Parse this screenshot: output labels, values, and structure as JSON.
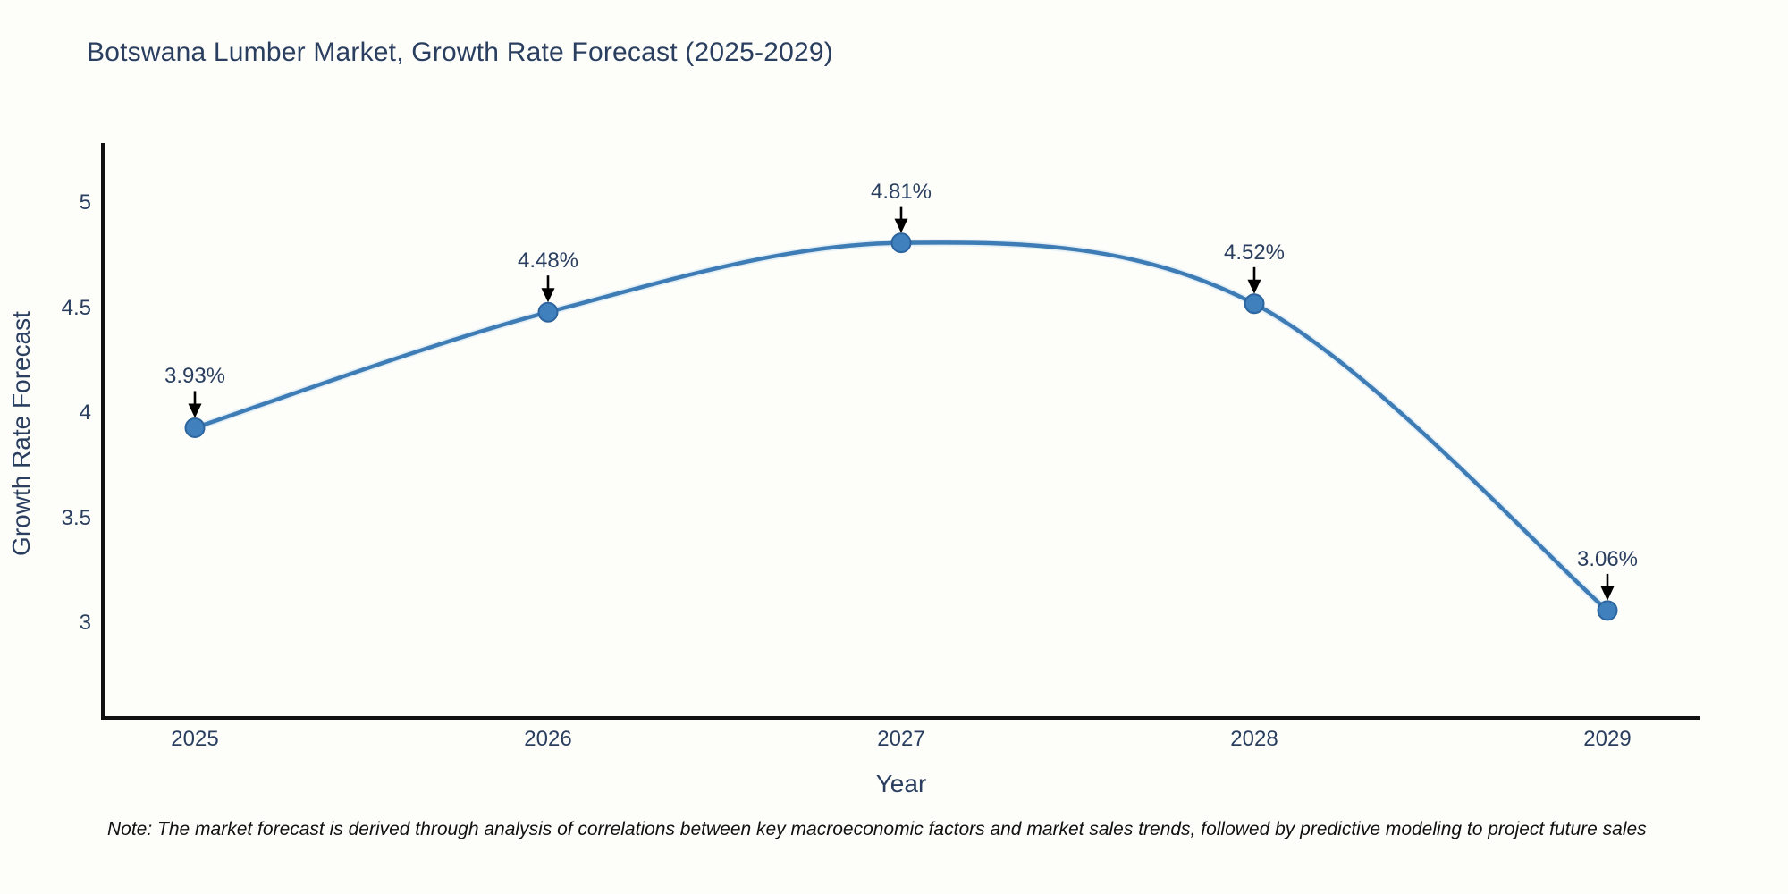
{
  "chart_data": {
    "type": "line",
    "title": "Botswana Lumber Market, Growth Rate Forecast (2025-2029)",
    "xlabel": "Year",
    "ylabel": "Growth Rate Forecast",
    "x": [
      2025,
      2026,
      2027,
      2028,
      2029
    ],
    "categories": [
      "2025",
      "2026",
      "2027",
      "2028",
      "2029"
    ],
    "values": [
      3.93,
      4.48,
      4.81,
      4.52,
      3.06
    ],
    "point_labels": [
      "3.93%",
      "4.48%",
      "4.81%",
      "4.52%",
      "3.06%"
    ],
    "ylim": [
      2.55,
      5.29
    ],
    "yticks": [
      3,
      3.5,
      4,
      4.5,
      5
    ],
    "ytick_labels": [
      "3",
      "3.5",
      "4",
      "4.5",
      "5"
    ],
    "grid": false,
    "legend": "none",
    "line_shape": "spline",
    "colors": {
      "line": "#3e7cb6",
      "marker_fill": "#4080bc",
      "marker_edge": "#2d659e",
      "arrow": "#000000",
      "axis_line": "#111111",
      "text": "#2a3f5f"
    }
  },
  "footnote": "Note: The market forecast is derived through analysis of correlations between key macroeconomic factors and market sales trends, followed by predictive modeling to project future sales"
}
